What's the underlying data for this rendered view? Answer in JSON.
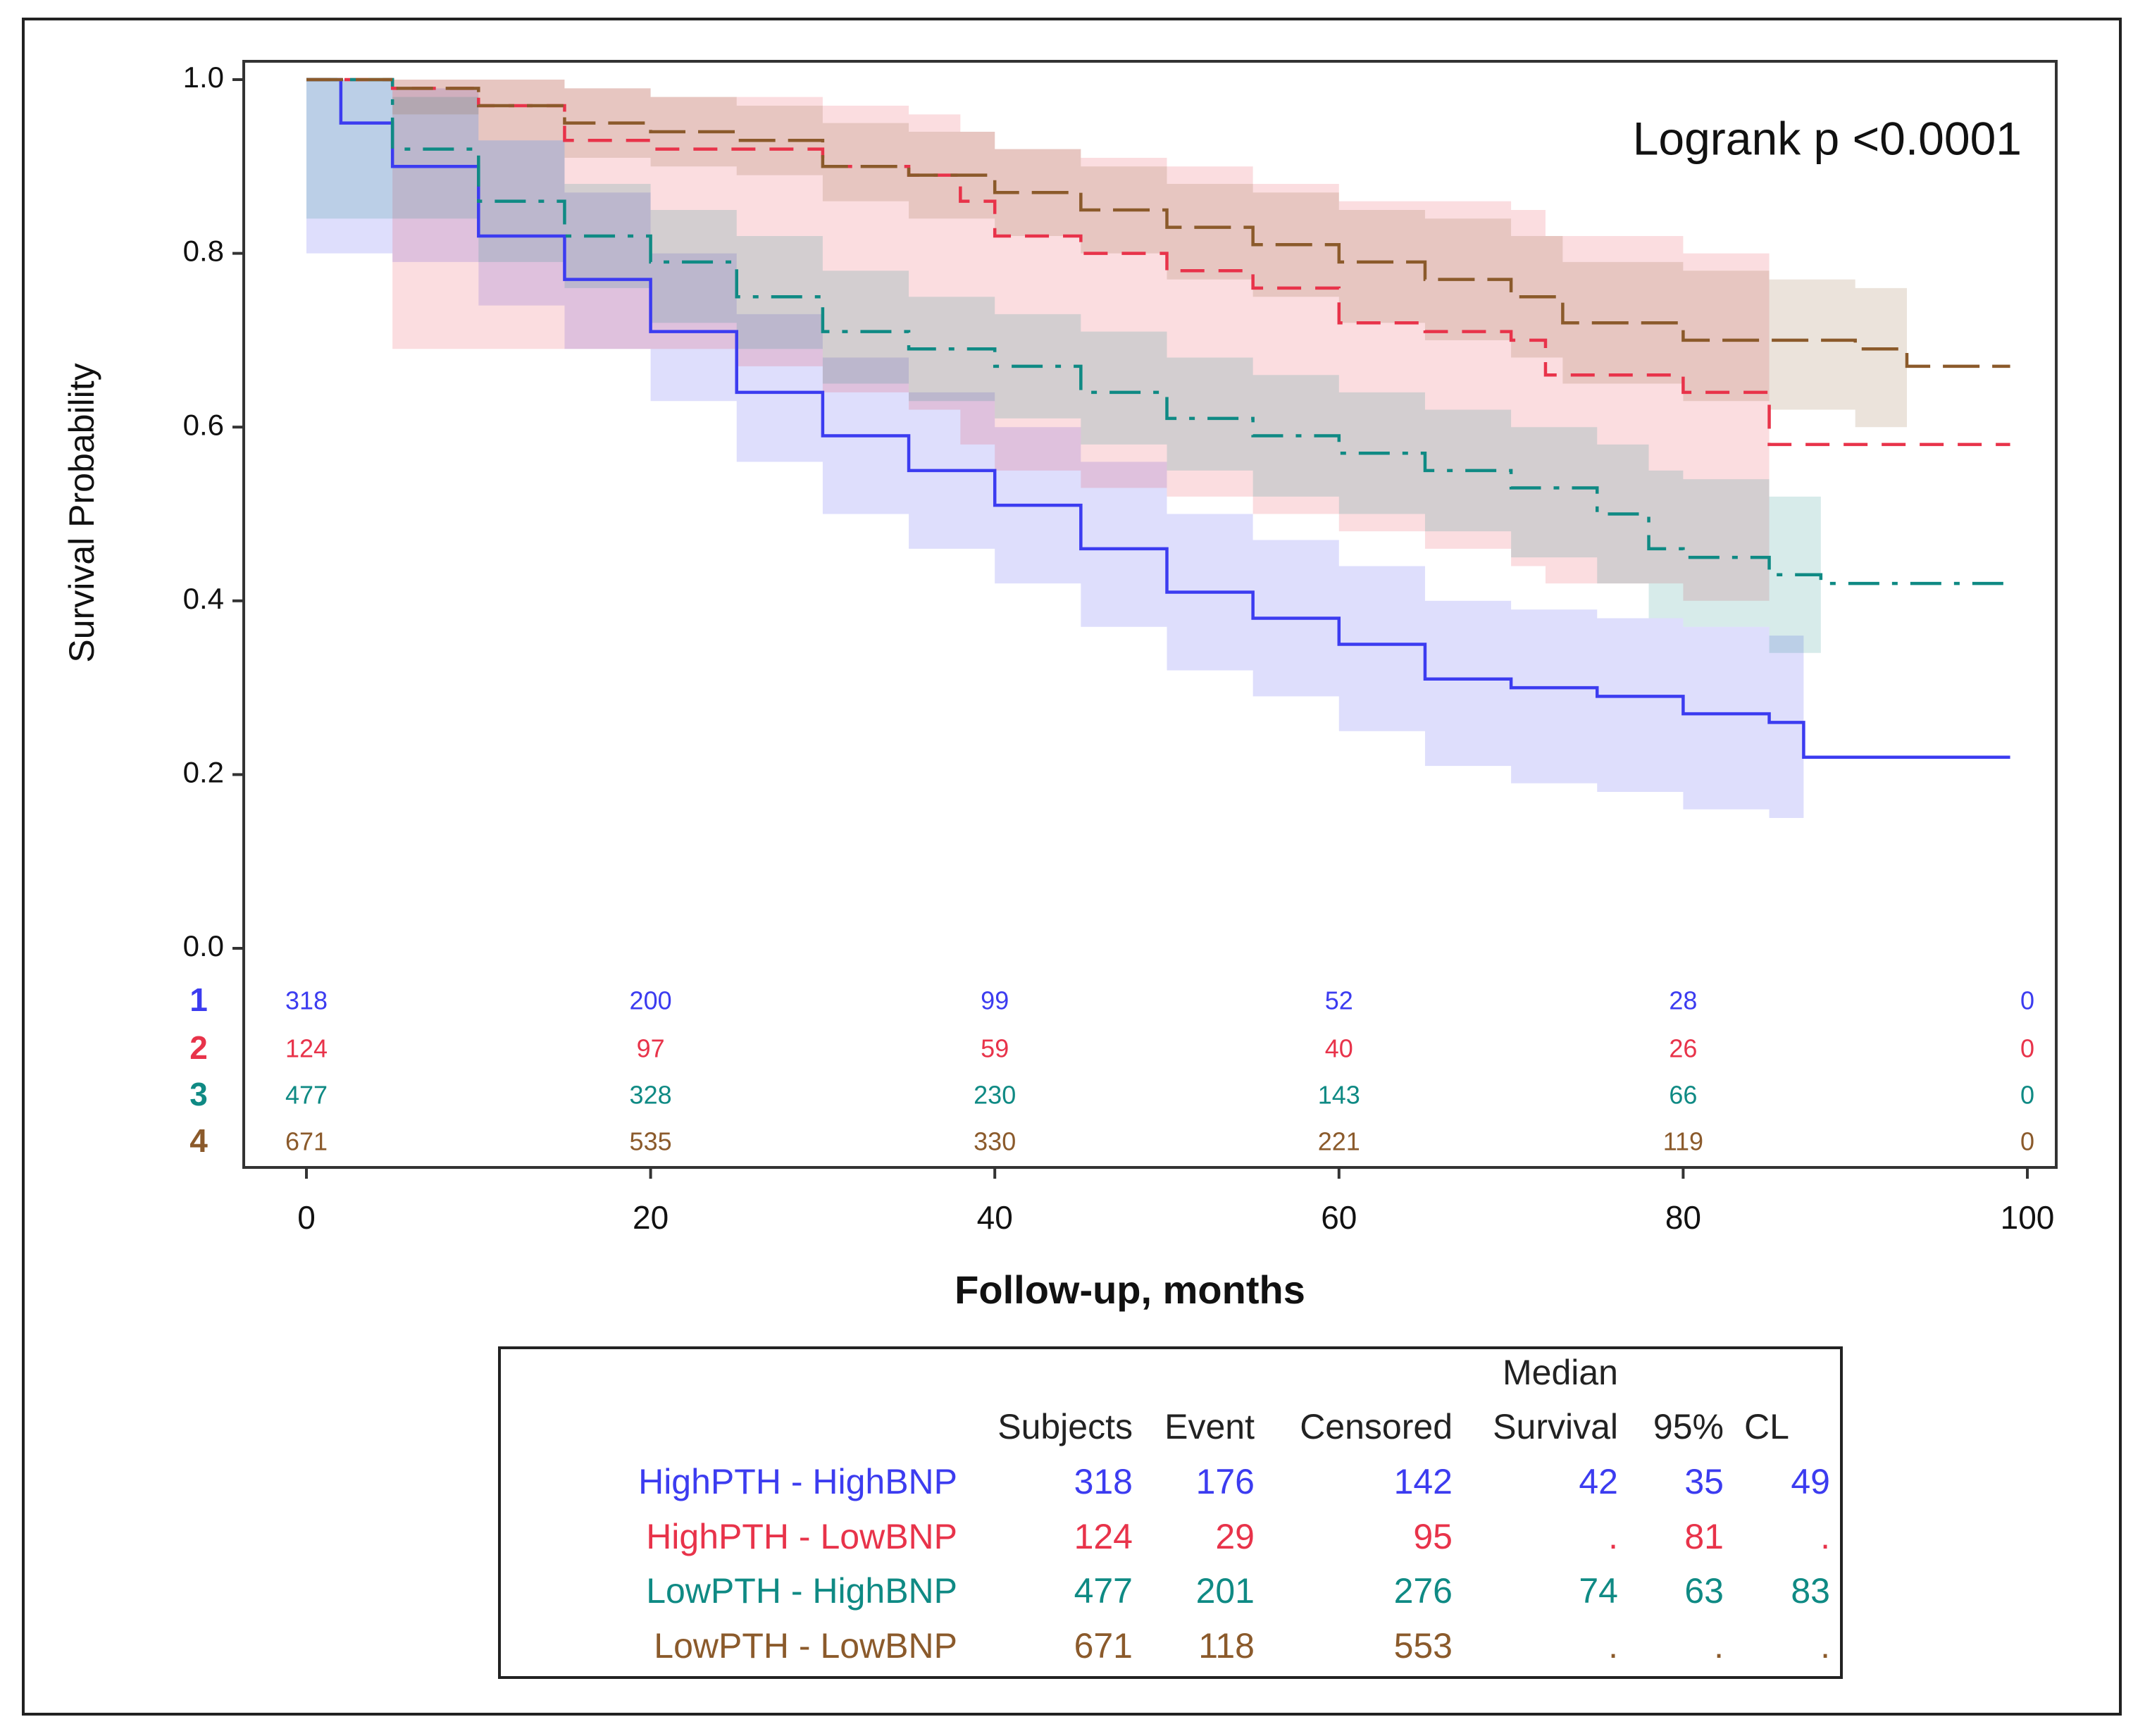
{
  "chart_data": {
    "type": "step",
    "annotation": "Logrank p <0.0001",
    "x_label": "Follow-up, months",
    "y_label": "Survival Probability",
    "xlim": [
      0,
      100
    ],
    "ylim": [
      0,
      1
    ],
    "xticks": [
      0,
      20,
      40,
      60,
      80,
      100
    ],
    "yticks": [
      {
        "value": 0,
        "label": "0.0"
      },
      0.2,
      0.4,
      0.6,
      0.8,
      {
        "value": 1,
        "label": "1.0"
      }
    ],
    "series": [
      {
        "name": "HighPTH - HighBNP",
        "color": "#3c3cf0",
        "dash": "none",
        "x": [
          0,
          2,
          5,
          10,
          15,
          20,
          25,
          30,
          35,
          40,
          45,
          50,
          55,
          60,
          65,
          70,
          75,
          80,
          85,
          87,
          99
        ],
        "values": [
          1.0,
          0.95,
          0.9,
          0.82,
          0.77,
          0.71,
          0.64,
          0.59,
          0.55,
          0.51,
          0.46,
          0.41,
          0.38,
          0.35,
          0.31,
          0.3,
          0.29,
          0.27,
          0.26,
          0.22,
          0.22
        ],
        "lower": [
          0.8,
          0.8,
          0.79,
          0.74,
          0.69,
          0.63,
          0.56,
          0.5,
          0.46,
          0.42,
          0.37,
          0.32,
          0.29,
          0.25,
          0.21,
          0.19,
          0.18,
          0.16,
          0.15,
          null,
          null
        ],
        "upper": [
          1.0,
          1.0,
          0.99,
          0.93,
          0.87,
          0.8,
          0.73,
          0.68,
          0.64,
          0.6,
          0.56,
          0.5,
          0.47,
          0.44,
          0.4,
          0.39,
          0.38,
          0.37,
          0.36,
          null,
          null
        ]
      },
      {
        "name": "HighPTH - LowBNP",
        "color": "#e8334a",
        "dash": "34,20",
        "x": [
          0,
          5,
          10,
          15,
          20,
          25,
          30,
          35,
          38,
          40,
          45,
          50,
          55,
          58,
          60,
          65,
          70,
          72,
          75,
          80,
          85,
          99
        ],
        "values": [
          1.0,
          0.99,
          0.97,
          0.93,
          0.92,
          0.92,
          0.9,
          0.89,
          0.86,
          0.82,
          0.8,
          0.78,
          0.76,
          0.76,
          0.72,
          0.71,
          0.7,
          0.66,
          0.66,
          0.64,
          0.58,
          0.58
        ],
        "lower": [
          1.0,
          0.69,
          0.69,
          0.69,
          0.69,
          0.67,
          0.64,
          0.62,
          0.58,
          0.55,
          0.53,
          0.52,
          0.5,
          0.5,
          0.48,
          0.46,
          0.44,
          0.42,
          0.42,
          0.4,
          null,
          null
        ],
        "upper": [
          1.0,
          1.0,
          1.0,
          0.99,
          0.98,
          0.98,
          0.97,
          0.96,
          0.94,
          0.92,
          0.91,
          0.9,
          0.88,
          0.88,
          0.86,
          0.86,
          0.85,
          0.82,
          0.82,
          0.8,
          null,
          null
        ]
      },
      {
        "name": "LowPTH - HighBNP",
        "color": "#0f8a84",
        "dash": "44,18,8,18",
        "x": [
          0,
          5,
          10,
          15,
          20,
          25,
          30,
          35,
          40,
          45,
          50,
          55,
          60,
          65,
          70,
          75,
          78,
          80,
          85,
          88,
          99
        ],
        "values": [
          1.0,
          0.92,
          0.86,
          0.82,
          0.79,
          0.75,
          0.71,
          0.69,
          0.67,
          0.64,
          0.61,
          0.59,
          0.57,
          0.55,
          0.53,
          0.5,
          0.46,
          0.45,
          0.43,
          0.42,
          0.42
        ],
        "lower": [
          0.84,
          0.84,
          0.79,
          0.76,
          0.72,
          0.69,
          0.65,
          0.63,
          0.61,
          0.58,
          0.55,
          0.52,
          0.5,
          0.48,
          0.45,
          0.42,
          0.38,
          0.37,
          0.34,
          null,
          null
        ],
        "upper": [
          1.0,
          0.98,
          0.93,
          0.88,
          0.85,
          0.82,
          0.78,
          0.75,
          0.73,
          0.71,
          0.68,
          0.66,
          0.64,
          0.62,
          0.6,
          0.58,
          0.55,
          0.54,
          0.52,
          null,
          null
        ]
      },
      {
        "name": "LowPTH - LowBNP",
        "color": "#8b5a2b",
        "dash": "52,18",
        "x": [
          0,
          5,
          10,
          15,
          20,
          25,
          30,
          35,
          40,
          45,
          50,
          55,
          60,
          65,
          70,
          73,
          75,
          80,
          85,
          90,
          93,
          99
        ],
        "values": [
          1.0,
          0.99,
          0.97,
          0.95,
          0.94,
          0.93,
          0.9,
          0.89,
          0.87,
          0.85,
          0.83,
          0.81,
          0.79,
          0.77,
          0.75,
          0.72,
          0.72,
          0.7,
          0.7,
          0.69,
          0.67,
          0.67
        ],
        "lower": [
          1.0,
          0.96,
          0.93,
          0.91,
          0.9,
          0.89,
          0.86,
          0.84,
          0.82,
          0.8,
          0.77,
          0.75,
          0.72,
          0.7,
          0.68,
          0.65,
          0.65,
          0.63,
          0.62,
          0.6,
          null,
          null
        ],
        "upper": [
          1.0,
          1.0,
          1.0,
          0.99,
          0.98,
          0.97,
          0.95,
          0.94,
          0.92,
          0.9,
          0.88,
          0.87,
          0.85,
          0.84,
          0.82,
          0.79,
          0.79,
          0.78,
          0.77,
          0.76,
          null,
          null
        ]
      }
    ],
    "risk_table": {
      "labels": [
        "1",
        "2",
        "3",
        "4"
      ],
      "counts": [
        [
          318,
          200,
          99,
          52,
          28,
          0
        ],
        [
          124,
          97,
          59,
          40,
          26,
          0
        ],
        [
          477,
          328,
          230,
          143,
          66,
          0
        ],
        [
          671,
          535,
          330,
          221,
          119,
          0
        ]
      ]
    },
    "summary_table": {
      "columns": [
        [
          "Subjects"
        ],
        [
          "Event"
        ],
        [
          "Censored"
        ],
        [
          "Median",
          "Survival"
        ],
        [
          "95%"
        ],
        [
          "CL"
        ]
      ],
      "rows": [
        [
          318,
          176,
          142,
          42,
          35,
          49
        ],
        [
          124,
          29,
          95,
          ".",
          81,
          "."
        ],
        [
          477,
          201,
          276,
          74,
          63,
          83
        ],
        [
          671,
          118,
          553,
          ".",
          ".",
          "."
        ]
      ]
    }
  }
}
